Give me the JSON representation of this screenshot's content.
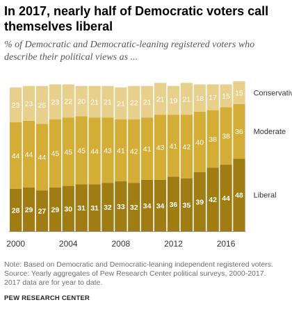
{
  "title": "In 2017, nearly half of Democratic voters call themselves liberal",
  "subtitle": "% of Democratic and Democratic-leaning registered voters who describe their political views as ...",
  "note_lines": [
    "Note: Based on Democratic and Democratic-leaning independent registered voters.",
    "Source: Yearly aggregates of Pew Research Center political surveys, 2000-2017.",
    "2017 data are for year to date."
  ],
  "source_org": "PEW RESEARCH CENTER",
  "chart_data": {
    "type": "bar",
    "stacked": true,
    "categories": [
      "2000",
      "2001",
      "2002",
      "2003",
      "2004",
      "2005",
      "2006",
      "2007",
      "2008",
      "2009",
      "2010",
      "2011",
      "2012",
      "2013",
      "2014",
      "2015",
      "2016",
      "2017"
    ],
    "x_tick_labels": [
      "2000",
      "2004",
      "2008",
      "2012",
      "2016"
    ],
    "series": [
      {
        "name": "Liberal",
        "color": "#a07d12",
        "values": [
          28,
          29,
          27,
          29,
          30,
          31,
          31,
          32,
          33,
          32,
          34,
          34,
          36,
          35,
          39,
          42,
          44,
          48
        ]
      },
      {
        "name": "Moderate",
        "color": "#d4ad37",
        "values": [
          44,
          44,
          44,
          45,
          45,
          45,
          44,
          43,
          41,
          42,
          41,
          43,
          41,
          42,
          40,
          38,
          38,
          36
        ]
      },
      {
        "name": "Conservative",
        "color": "#e6d08c",
        "values": [
          23,
          23,
          25,
          23,
          22,
          20,
          21,
          21,
          21,
          22,
          21,
          21,
          19,
          21,
          18,
          17,
          15,
          15
        ]
      }
    ],
    "ylim": [
      0,
      100
    ],
    "legend": "right, inline labels beside the last bar"
  }
}
